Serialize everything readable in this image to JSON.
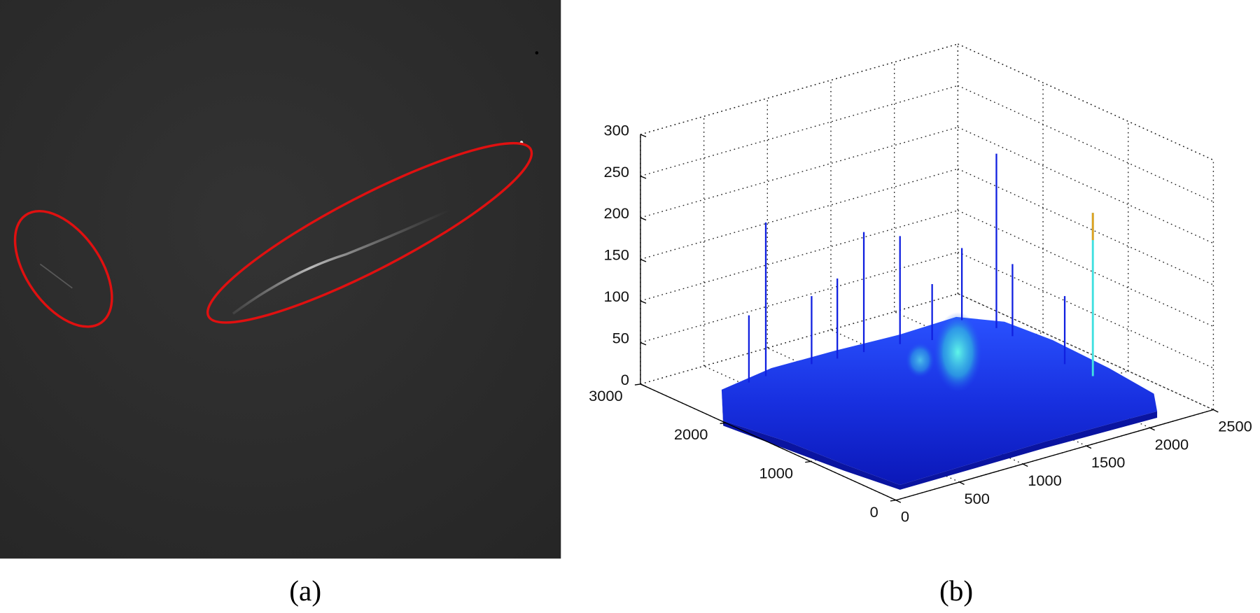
{
  "panel_a": {
    "caption": "(a)"
  },
  "panel_b": {
    "caption": "(b)",
    "z_ticks": [
      0,
      50,
      100,
      150,
      200,
      250,
      300
    ],
    "x_ticks": [
      0,
      500,
      1000,
      1500,
      2000,
      2500
    ],
    "y_ticks": [
      0,
      1000,
      2000,
      3000
    ]
  }
}
